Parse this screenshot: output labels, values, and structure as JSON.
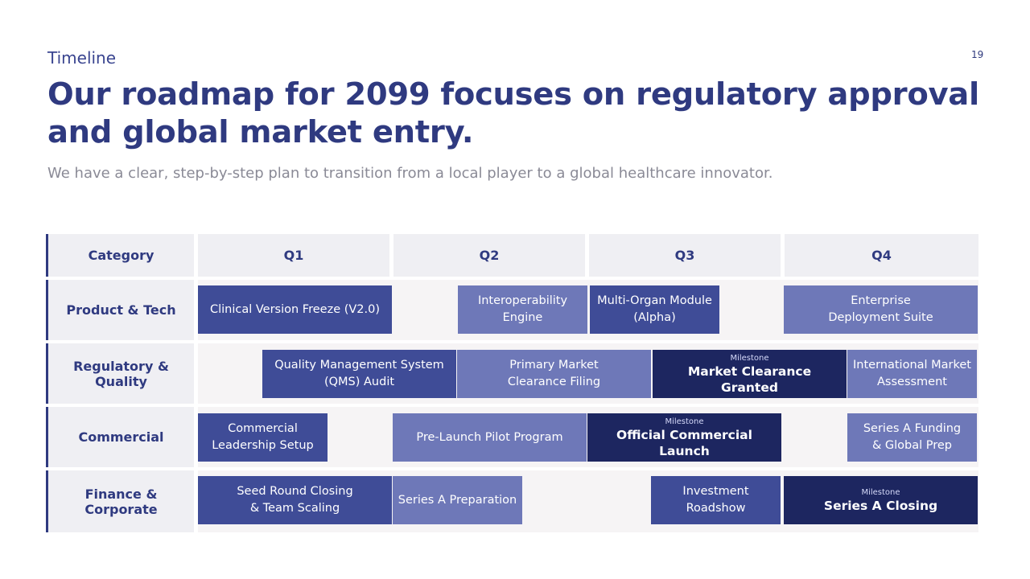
{
  "header": {
    "eyebrow": "Timeline",
    "page_number": "19",
    "title": "Our roadmap for 2099 focuses on regulatory approval and global market entry.",
    "subtitle": "We have a clear, step-by-step plan to transition from a local player to a global healthcare innovator."
  },
  "table": {
    "category_header": "Category",
    "quarters": [
      "Q1",
      "Q2",
      "Q3",
      "Q4"
    ],
    "rows": [
      {
        "category": "Product & Tech",
        "items": [
          {
            "lines": [
              "Clinical Version Freeze (V2.0)"
            ]
          },
          {
            "lines": [
              "Interoperability",
              "Engine"
            ]
          },
          {
            "lines": [
              "Multi-Organ Module",
              "(Alpha)"
            ]
          },
          {
            "lines": [
              "Enterprise",
              "Deployment Suite"
            ]
          }
        ]
      },
      {
        "category": "Regulatory & Quality",
        "items": [
          {
            "lines": [
              "Quality Management System",
              "(QMS) Audit"
            ]
          },
          {
            "lines": [
              "Primary Market",
              "Clearance Filing"
            ]
          },
          {
            "milestone_tag": "Milestone",
            "title": "Market Clearance Granted"
          },
          {
            "lines": [
              "International Market",
              "Assessment"
            ]
          }
        ]
      },
      {
        "category": "Commercial",
        "items": [
          {
            "lines": [
              "Commercial",
              "Leadership Setup"
            ]
          },
          {
            "lines": [
              "Pre-Launch Pilot Program"
            ]
          },
          {
            "milestone_tag": "Milestone",
            "title": "Official Commercial Launch"
          },
          {
            "lines": [
              "Series A Funding",
              "& Global Prep"
            ]
          }
        ]
      },
      {
        "category": "Finance & Corporate",
        "items": [
          {
            "lines": [
              "Seed Round Closing",
              "& Team Scaling"
            ]
          },
          {
            "lines": [
              "Series A Preparation"
            ]
          },
          {
            "lines": [
              "Investment",
              "Roadshow"
            ]
          },
          {
            "milestone_tag": "Milestone",
            "title": "Series A Closing"
          }
        ]
      }
    ]
  }
}
